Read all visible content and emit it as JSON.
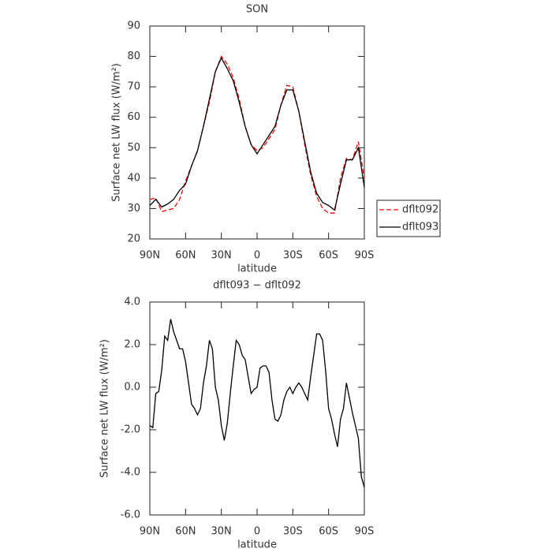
{
  "chart_data": [
    {
      "type": "line",
      "title": "SON",
      "xlabel": "latitude",
      "ylabel": "Surface net LW flux (W/m²)",
      "x": [
        90,
        85,
        80,
        75,
        70,
        65,
        60,
        55,
        50,
        45,
        40,
        35,
        30,
        25,
        20,
        15,
        10,
        5,
        0,
        -5,
        -10,
        -15,
        -20,
        -25,
        -30,
        -35,
        -40,
        -45,
        -50,
        -55,
        -60,
        -65,
        -70,
        -75,
        -80,
        -85,
        -90
      ],
      "series": [
        {
          "name": "dflt092",
          "color": "#ff0000",
          "style": "dashed",
          "values": [
            33,
            33.5,
            29,
            29.5,
            30,
            33,
            39,
            44,
            49,
            57,
            65,
            75,
            80,
            77.5,
            73,
            66,
            57,
            51,
            49,
            50,
            53,
            56,
            64,
            70.5,
            70,
            62,
            51,
            41,
            34,
            30,
            28.5,
            28.5,
            40,
            46.5,
            46,
            52,
            40
          ]
        },
        {
          "name": "dflt093",
          "color": "#000000",
          "style": "solid",
          "values": [
            31,
            33,
            30.5,
            31.5,
            33,
            36,
            38,
            44,
            49,
            57,
            66,
            75,
            79.5,
            76,
            72,
            65,
            57,
            51,
            48,
            51,
            54,
            57,
            64,
            69,
            69,
            62,
            52,
            42,
            35,
            32,
            31,
            29.5,
            38,
            46,
            46,
            50,
            37
          ]
        }
      ],
      "xlim": [
        90,
        -90
      ],
      "xticks": [
        {
          "value": 90,
          "label": "90N"
        },
        {
          "value": 60,
          "label": "60N"
        },
        {
          "value": 30,
          "label": "30N"
        },
        0,
        {
          "value": -30,
          "label": "30S"
        },
        {
          "value": -60,
          "label": "60S"
        },
        {
          "value": -90,
          "label": "90S"
        }
      ],
      "ylim": [
        20,
        90
      ],
      "yticks": [
        20,
        30,
        40,
        50,
        60,
        70,
        80,
        90
      ],
      "legend": "right"
    },
    {
      "type": "line",
      "title": "dflt093 − dflt092",
      "xlabel": "latitude",
      "ylabel": "Surface net LW flux (W/m²)",
      "x": [
        90,
        87.5,
        85,
        82.5,
        80,
        77.5,
        75,
        72.5,
        70,
        67.5,
        65,
        62.5,
        60,
        57.5,
        55,
        52.5,
        50,
        47.5,
        45,
        42.5,
        40,
        37.5,
        35,
        32.5,
        30,
        27.5,
        25,
        22.5,
        20,
        17.5,
        15,
        12.5,
        10,
        7.5,
        5,
        2.5,
        0,
        -2.5,
        -5,
        -7.5,
        -10,
        -12.5,
        -15,
        -17.5,
        -20,
        -22.5,
        -25,
        -27.5,
        -30,
        -32.5,
        -35,
        -37.5,
        -40,
        -42.5,
        -45,
        -47.5,
        -50,
        -52.5,
        -55,
        -57.5,
        -60,
        -62.5,
        -65,
        -67.5,
        -70,
        -72.5,
        -75,
        -77.5,
        -80,
        -82.5,
        -85,
        -87.5,
        -90
      ],
      "series": [
        {
          "color": "#000000",
          "style": "solid",
          "values": [
            -1.8,
            -1.9,
            -0.3,
            -0.2,
            0.8,
            2.4,
            2.2,
            3.2,
            2.6,
            2.2,
            1.8,
            1.8,
            1.2,
            0.2,
            -0.8,
            -1.0,
            -1.3,
            -1.0,
            0.2,
            1.0,
            2.2,
            1.8,
            0.0,
            -0.6,
            -1.8,
            -2.5,
            -1.7,
            -0.3,
            1.0,
            2.2,
            2.0,
            1.5,
            1.3,
            0.5,
            -0.3,
            -0.1,
            0.0,
            0.9,
            1.0,
            1.0,
            0.7,
            -0.6,
            -1.5,
            -1.6,
            -1.3,
            -0.6,
            -0.2,
            0.0,
            -0.3,
            0.0,
            0.2,
            0.0,
            -0.3,
            -0.6,
            0.5,
            1.5,
            2.5,
            2.5,
            2.2,
            0.8,
            -1.0,
            -1.5,
            -2.2,
            -2.8,
            -1.5,
            -1.0,
            0.2,
            -0.5,
            -1.2,
            -1.8,
            -2.4,
            -4.2,
            -4.7
          ]
        }
      ],
      "xlim": [
        90,
        -90
      ],
      "xticks": [
        {
          "value": 90,
          "label": "90N"
        },
        {
          "value": 60,
          "label": "60N"
        },
        {
          "value": 30,
          "label": "30N"
        },
        0,
        {
          "value": -30,
          "label": "30S"
        },
        {
          "value": -60,
          "label": "60S"
        },
        {
          "value": -90,
          "label": "90S"
        }
      ],
      "ylim": [
        -6,
        4
      ],
      "yticks": [
        {
          "value": -6,
          "label": "-6.0"
        },
        {
          "value": -4,
          "label": "-4.0"
        },
        {
          "value": -2,
          "label": "-2.0"
        },
        {
          "value": 0,
          "label": "0.0"
        },
        {
          "value": 2,
          "label": "2.0"
        },
        {
          "value": 4,
          "label": "4.0"
        }
      ]
    }
  ]
}
